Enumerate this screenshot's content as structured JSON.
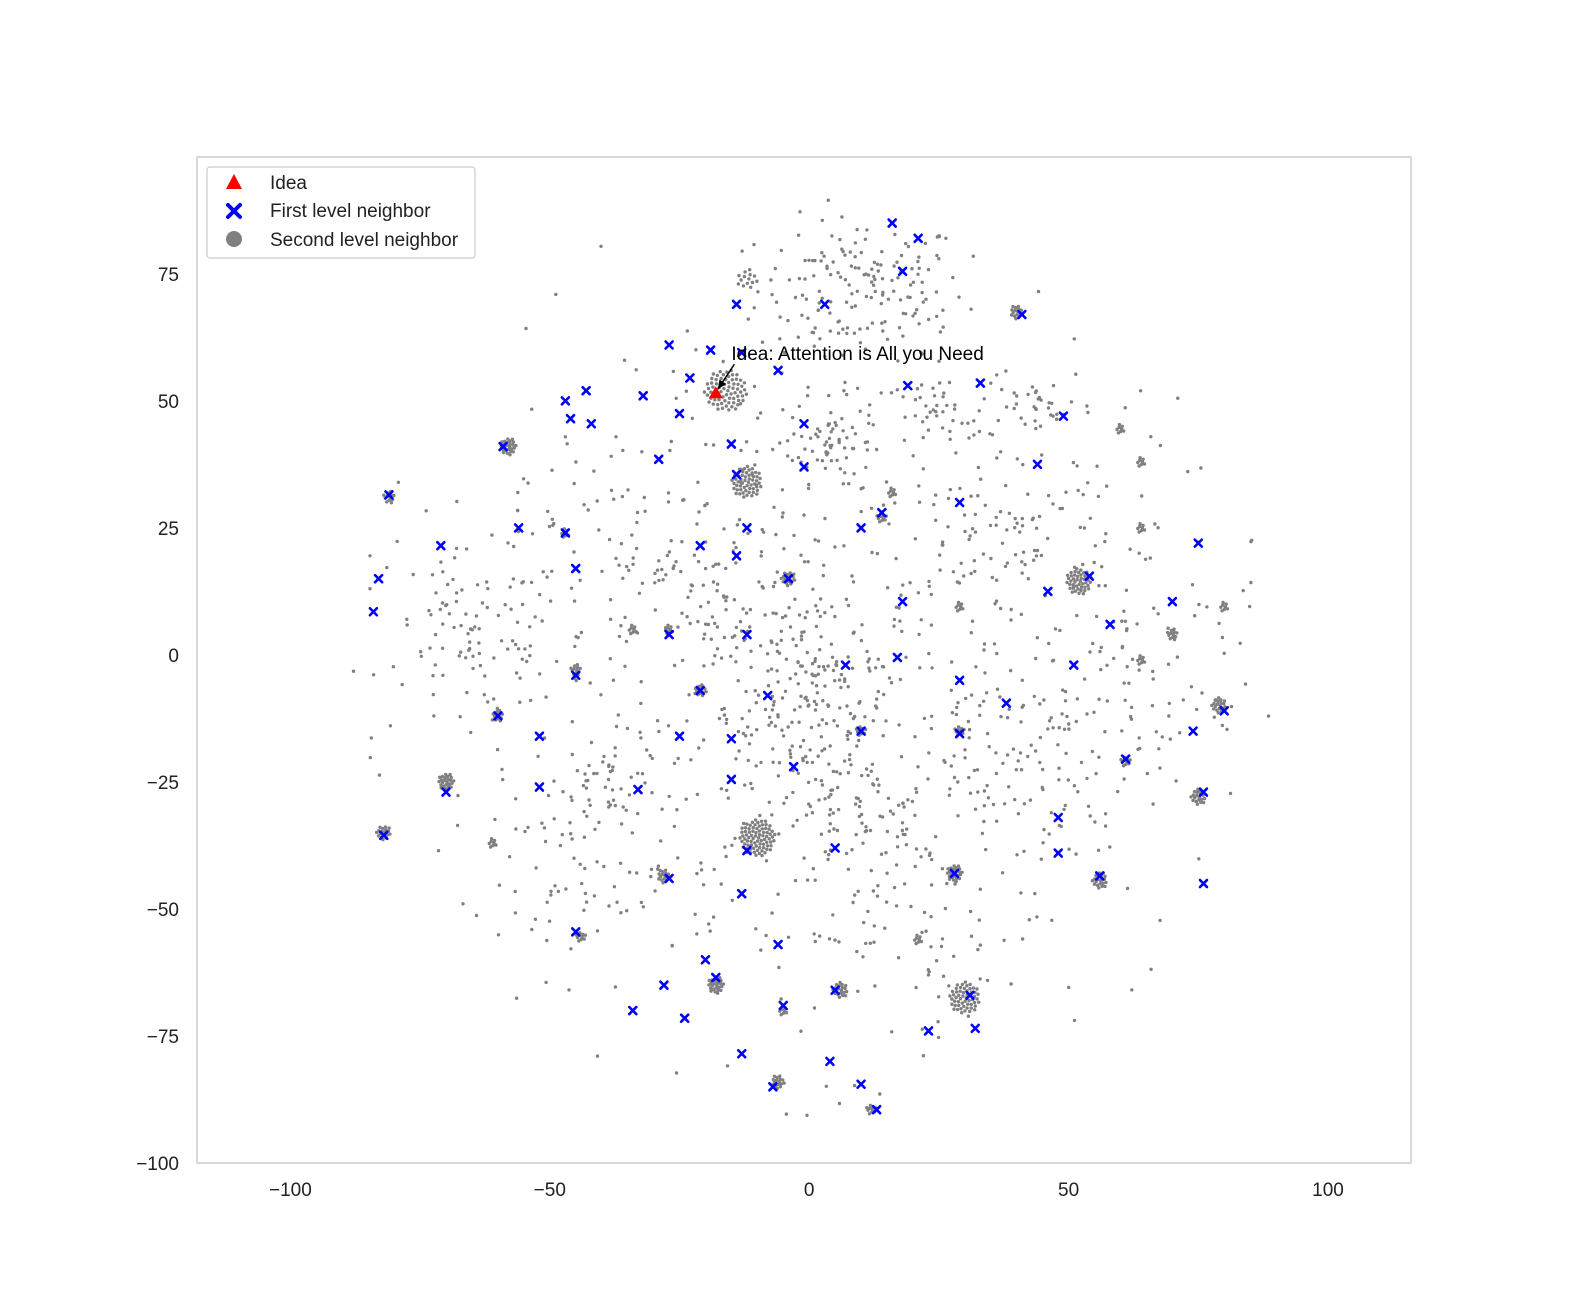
{
  "chart_data": {
    "type": "scatter",
    "title": "",
    "xlabel": "",
    "ylabel": "",
    "xlim": [
      -118,
      116
    ],
    "ylim": [
      -100,
      98
    ],
    "xticks": [
      -100,
      -50,
      0,
      50,
      100
    ],
    "yticks": [
      -100,
      -75,
      -50,
      -25,
      0,
      25,
      50,
      75
    ],
    "xtick_labels": [
      "−100",
      "−50",
      "0",
      "50",
      "100"
    ],
    "ytick_labels": [
      "−100",
      "−75",
      "−50",
      "−25",
      "0",
      "25",
      "50",
      "75"
    ],
    "grid": false,
    "legend_position": "top-left",
    "legend": [
      {
        "label": "Idea",
        "marker": "triangle",
        "color": "#ff0000"
      },
      {
        "label": "First level neighbor",
        "marker": "x",
        "color": "#0000ff"
      },
      {
        "label": "Second level neighbor",
        "marker": "circle",
        "color": "#808080"
      }
    ],
    "series": [
      {
        "name": "Idea",
        "marker": "triangle",
        "color": "#ff0000",
        "points": [
          [
            -18,
            51.5
          ]
        ]
      },
      {
        "name": "First level neighbor",
        "marker": "x",
        "color": "#0000ff",
        "points": [
          [
            16,
            85
          ],
          [
            21,
            82
          ],
          [
            18,
            75.5
          ],
          [
            -14,
            69
          ],
          [
            3,
            69
          ],
          [
            41,
            67
          ],
          [
            -27,
            61
          ],
          [
            -19,
            60
          ],
          [
            -13,
            59.5
          ],
          [
            -23,
            54.5
          ],
          [
            -6,
            56
          ],
          [
            19,
            53
          ],
          [
            33,
            53.5
          ],
          [
            -43,
            52
          ],
          [
            -47,
            50
          ],
          [
            -32,
            51
          ],
          [
            -46,
            46.5
          ],
          [
            -42,
            45.5
          ],
          [
            -25,
            47.5
          ],
          [
            -1,
            45.5
          ],
          [
            49,
            47
          ],
          [
            -59,
            41
          ],
          [
            -15,
            41.5
          ],
          [
            -29,
            38.5
          ],
          [
            -1,
            37
          ],
          [
            44,
            37.5
          ],
          [
            -14,
            35.5
          ],
          [
            -81,
            31.5
          ],
          [
            29,
            30
          ],
          [
            14,
            28
          ],
          [
            10,
            25
          ],
          [
            -12,
            25
          ],
          [
            -56,
            25
          ],
          [
            -47,
            24
          ],
          [
            75,
            22
          ],
          [
            -71,
            21.5
          ],
          [
            -21,
            21.5
          ],
          [
            -14,
            19.5
          ],
          [
            -45,
            17
          ],
          [
            -83,
            15
          ],
          [
            -4,
            15
          ],
          [
            54,
            15.5
          ],
          [
            46,
            12.5
          ],
          [
            70,
            10.5
          ],
          [
            18,
            10.5
          ],
          [
            -84,
            8.5
          ],
          [
            58,
            6
          ],
          [
            -27,
            4
          ],
          [
            -12,
            4
          ],
          [
            17,
            -0.5
          ],
          [
            7,
            -2
          ],
          [
            51,
            -2
          ],
          [
            29,
            -5
          ],
          [
            -21,
            -7
          ],
          [
            -8,
            -8
          ],
          [
            38,
            -9.5
          ],
          [
            80,
            -11
          ],
          [
            -60,
            -12
          ],
          [
            -45,
            -4
          ],
          [
            10,
            -15
          ],
          [
            -52,
            -16
          ],
          [
            -25,
            -16
          ],
          [
            -15,
            -16.5
          ],
          [
            29,
            -15.5
          ],
          [
            74,
            -15
          ],
          [
            -3,
            -22
          ],
          [
            61,
            -20.5
          ],
          [
            -15,
            -24.5
          ],
          [
            -52,
            -26
          ],
          [
            -33,
            -26.5
          ],
          [
            -70,
            -27
          ],
          [
            76,
            -27
          ],
          [
            -82,
            -35.5
          ],
          [
            48,
            -32
          ],
          [
            5,
            -38
          ],
          [
            -12,
            -38.5
          ],
          [
            48,
            -39
          ],
          [
            -27,
            -44
          ],
          [
            28,
            -43
          ],
          [
            56,
            -43.5
          ],
          [
            76,
            -45
          ],
          [
            -13,
            -47
          ],
          [
            -45,
            -54.5
          ],
          [
            -6,
            -57
          ],
          [
            -20,
            -60
          ],
          [
            -18,
            -63.5
          ],
          [
            -28,
            -65
          ],
          [
            5,
            -66
          ],
          [
            31,
            -67
          ],
          [
            -5,
            -69
          ],
          [
            -34,
            -70
          ],
          [
            -24,
            -71.5
          ],
          [
            23,
            -74
          ],
          [
            32,
            -73.5
          ],
          [
            -13,
            -78.5
          ],
          [
            4,
            -80
          ],
          [
            -7,
            -85
          ],
          [
            10,
            -84.5
          ],
          [
            13,
            -89.5
          ]
        ]
      },
      {
        "name": "Second level neighbor",
        "marker": "circle",
        "color": "#808080",
        "clusters": [
          {
            "x": -16,
            "y": 52,
            "n": 70,
            "r": 4.0
          },
          {
            "x": -12,
            "y": 34,
            "n": 55,
            "r": 3.0
          },
          {
            "x": -10,
            "y": -36,
            "n": 80,
            "r": 3.5
          },
          {
            "x": 30,
            "y": -67.5,
            "n": 55,
            "r": 3.0
          },
          {
            "x": 52,
            "y": 14.5,
            "n": 45,
            "r": 2.5
          },
          {
            "x": -58,
            "y": 41,
            "n": 25,
            "r": 1.6
          },
          {
            "x": -70,
            "y": -25,
            "n": 25,
            "r": 1.6
          },
          {
            "x": 28,
            "y": -43,
            "n": 25,
            "r": 1.6
          },
          {
            "x": -18,
            "y": -65,
            "n": 25,
            "r": 1.6
          },
          {
            "x": 6,
            "y": -66,
            "n": 20,
            "r": 1.5
          },
          {
            "x": 75,
            "y": -28,
            "n": 20,
            "r": 1.5
          },
          {
            "x": 56,
            "y": -44.5,
            "n": 20,
            "r": 1.5
          },
          {
            "x": 79,
            "y": -10,
            "n": 20,
            "r": 1.5
          },
          {
            "x": -4,
            "y": 15,
            "n": 18,
            "r": 1.4
          },
          {
            "x": -82,
            "y": -35,
            "n": 18,
            "r": 1.4
          },
          {
            "x": -28,
            "y": -43.5,
            "n": 16,
            "r": 1.3
          },
          {
            "x": -6,
            "y": -84,
            "n": 16,
            "r": 1.3
          },
          {
            "x": 40,
            "y": 67.5,
            "n": 16,
            "r": 1.3
          },
          {
            "x": -21,
            "y": -7,
            "n": 14,
            "r": 1.2
          },
          {
            "x": -60,
            "y": -12,
            "n": 12,
            "r": 1.1
          },
          {
            "x": 70,
            "y": 4,
            "n": 12,
            "r": 1.1
          },
          {
            "x": -45,
            "y": -3,
            "n": 12,
            "r": 1.1
          },
          {
            "x": 10,
            "y": -15,
            "n": 10,
            "r": 1.0
          },
          {
            "x": 14,
            "y": 27,
            "n": 10,
            "r": 1.0
          },
          {
            "x": 29,
            "y": -15,
            "n": 10,
            "r": 1.0
          },
          {
            "x": 61,
            "y": -21,
            "n": 10,
            "r": 1.0
          },
          {
            "x": -44,
            "y": -55.5,
            "n": 10,
            "r": 1.0
          },
          {
            "x": 12,
            "y": -89.5,
            "n": 10,
            "r": 1.0
          },
          {
            "x": -12,
            "y": 74,
            "n": 14,
            "r": 2.0
          },
          {
            "x": -81,
            "y": 31,
            "n": 12,
            "r": 1.2
          },
          {
            "x": -61,
            "y": -37,
            "n": 8,
            "r": 0.9
          },
          {
            "x": -47,
            "y": 24,
            "n": 8,
            "r": 0.9
          },
          {
            "x": -27,
            "y": 5,
            "n": 8,
            "r": 0.9
          },
          {
            "x": -5,
            "y": -70,
            "n": 8,
            "r": 0.9
          },
          {
            "x": 29,
            "y": 9.5,
            "n": 8,
            "r": 0.9
          },
          {
            "x": 64,
            "y": 38,
            "n": 8,
            "r": 0.9
          },
          {
            "x": 64,
            "y": -1,
            "n": 8,
            "r": 0.9
          },
          {
            "x": 21,
            "y": -56,
            "n": 8,
            "r": 0.9
          },
          {
            "x": 80,
            "y": 9.5,
            "n": 8,
            "r": 0.9
          },
          {
            "x": 60,
            "y": 44.5,
            "n": 8,
            "r": 0.9
          },
          {
            "x": 64,
            "y": 25,
            "n": 8,
            "r": 0.9
          },
          {
            "x": 16,
            "y": 32,
            "n": 8,
            "r": 0.9
          },
          {
            "x": -34,
            "y": 5,
            "n": 8,
            "r": 0.9
          }
        ],
        "scatter_regions": [
          {
            "x": 10,
            "y": 72,
            "sx": 10,
            "sy": 7,
            "n": 160
          },
          {
            "x": 4,
            "y": 42,
            "sx": 4,
            "sy": 4,
            "n": 60
          },
          {
            "x": 0,
            "y": -10,
            "sx": 8,
            "sy": 9,
            "n": 140
          },
          {
            "x": -64,
            "y": 4,
            "sx": 9,
            "sy": 8,
            "n": 90
          },
          {
            "x": -38,
            "y": -24,
            "sx": 5,
            "sy": 4,
            "n": 45
          },
          {
            "x": 9,
            "y": -32,
            "sx": 7,
            "sy": 6,
            "n": 70
          },
          {
            "x": 24,
            "y": 47,
            "sx": 6,
            "sy": 4,
            "n": 45
          },
          {
            "x": 45,
            "y": 49,
            "sx": 5,
            "sy": 3,
            "n": 30
          },
          {
            "x": 38,
            "y": 25,
            "sx": 12,
            "sy": 8,
            "n": 80
          },
          {
            "x": 35,
            "y": -20,
            "sx": 14,
            "sy": 10,
            "n": 90
          },
          {
            "x": -30,
            "y": 20,
            "sx": 12,
            "sy": 10,
            "n": 70
          },
          {
            "x": -10,
            "y": 5,
            "sx": 10,
            "sy": 8,
            "n": 70
          },
          {
            "x": 20,
            "y": -55,
            "sx": 14,
            "sy": 10,
            "n": 70
          },
          {
            "x": -40,
            "y": -45,
            "sx": 12,
            "sy": 8,
            "n": 60
          },
          {
            "x": 60,
            "y": -5,
            "sx": 12,
            "sy": 12,
            "n": 70
          },
          {
            "x": 0,
            "y": 0,
            "sx": 45,
            "sy": 38,
            "n": 600
          }
        ]
      }
    ],
    "annotations": [
      {
        "text": "Idea: Attention is All you Need",
        "x": -18,
        "y": 51.5,
        "text_x": -15,
        "text_y": 58
      }
    ]
  }
}
